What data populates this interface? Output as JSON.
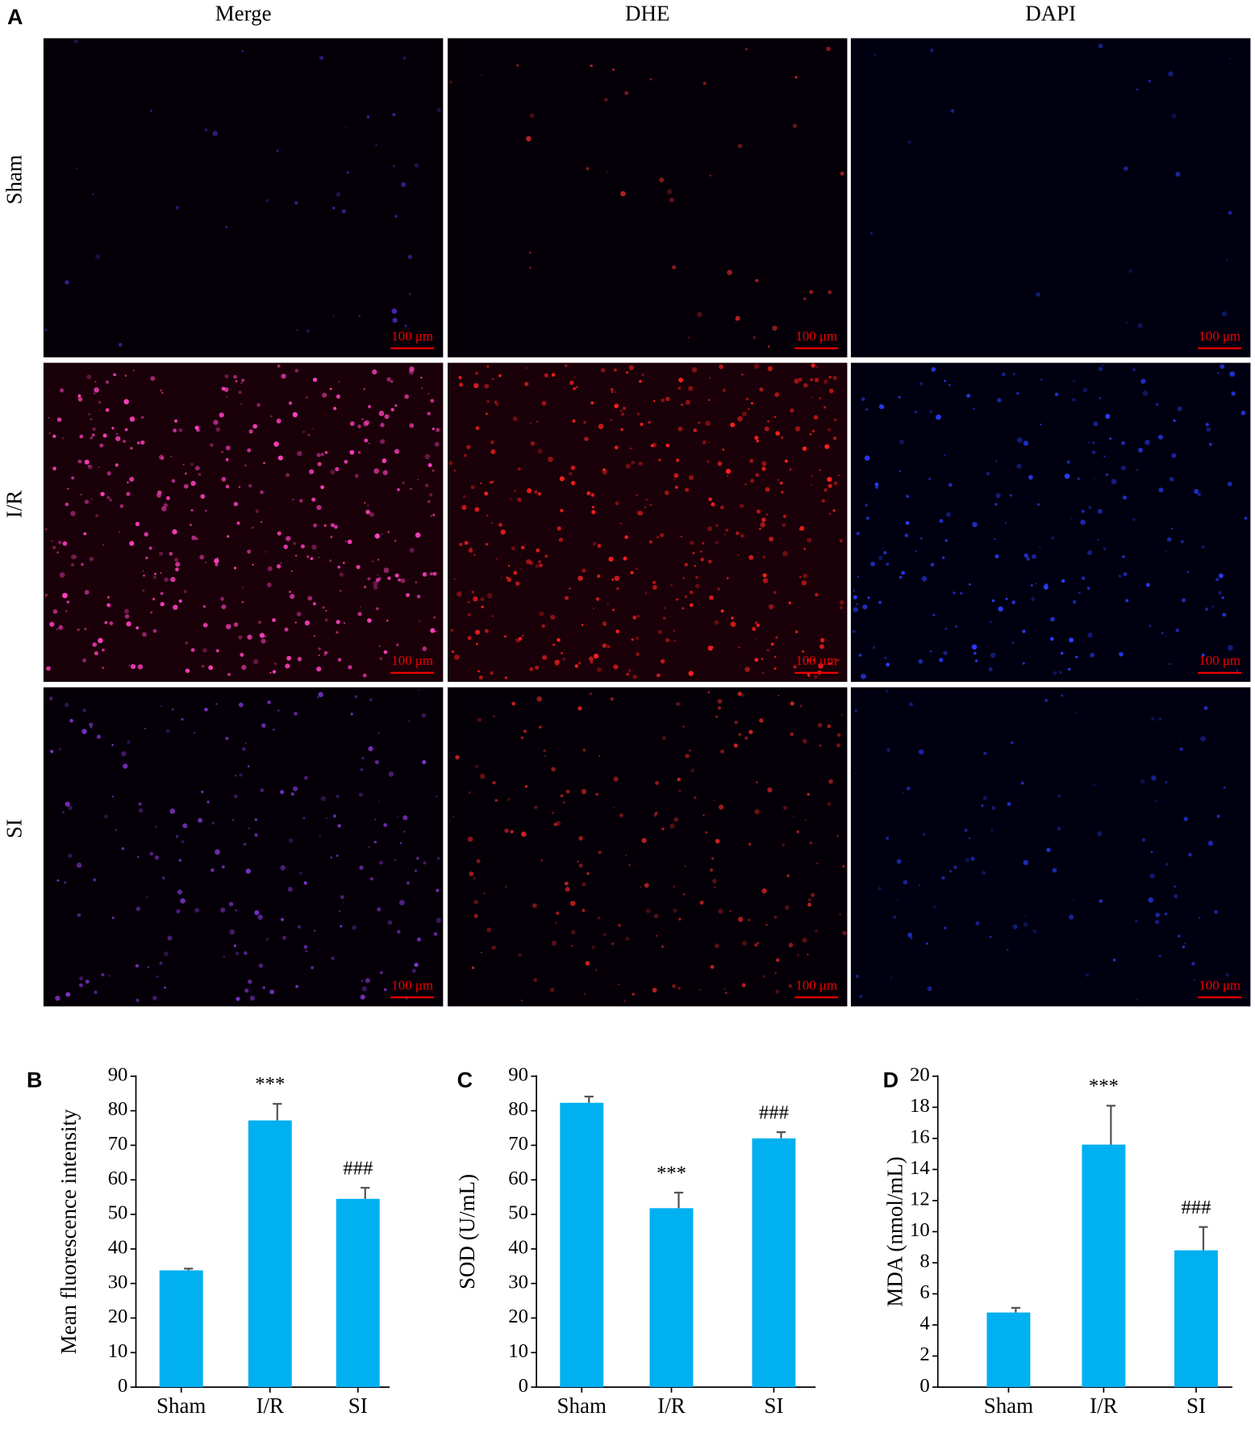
{
  "figure": {
    "panel_label": "A",
    "columns": [
      "Merge",
      "DHE",
      "DAPI"
    ],
    "rows": [
      "Sham",
      "I/R",
      "SI"
    ],
    "scale_bar": "100 μm"
  },
  "chart_data": [
    {
      "type": "bar",
      "panel_label": "B",
      "ylabel": "Mean fluorescence intensity",
      "categories": [
        "Sham",
        "I/R",
        "SI"
      ],
      "values": [
        33.8,
        77.2,
        54.5
      ],
      "errors": [
        0.5,
        4.8,
        3.2
      ],
      "significance": [
        null,
        "***",
        "###"
      ],
      "color": "#00b0f0",
      "ylim": [
        0,
        90
      ],
      "yticks": [
        0,
        10,
        20,
        30,
        40,
        50,
        60,
        70,
        80,
        90
      ]
    },
    {
      "type": "bar",
      "panel_label": "C",
      "ylabel": "SOD (U/mL)",
      "categories": [
        "Sham",
        "I/R",
        "SI"
      ],
      "values": [
        82.3,
        51.8,
        72.0
      ],
      "errors": [
        1.8,
        4.5,
        1.8
      ],
      "significance": [
        null,
        "***",
        "###"
      ],
      "color": "#00b0f0",
      "ylim": [
        0,
        90
      ],
      "yticks": [
        0,
        10,
        20,
        30,
        40,
        50,
        60,
        70,
        80,
        90
      ]
    },
    {
      "type": "bar",
      "panel_label": "D",
      "ylabel": "MDA (nmol/mL)",
      "categories": [
        "Sham",
        "I/R",
        "SI"
      ],
      "values": [
        4.8,
        15.6,
        8.8
      ],
      "errors": [
        0.3,
        2.5,
        1.5
      ],
      "significance": [
        null,
        "***",
        "###"
      ],
      "color": "#00b0f0",
      "ylim": [
        0,
        20
      ],
      "yticks": [
        0,
        2,
        4,
        6,
        8,
        10,
        12,
        14,
        16,
        18,
        20
      ]
    }
  ]
}
